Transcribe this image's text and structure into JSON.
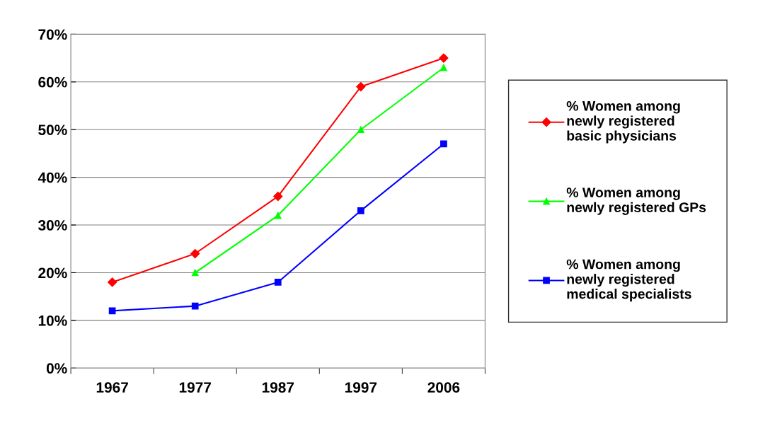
{
  "chart_data": {
    "type": "line",
    "categories": [
      "1967",
      "1977",
      "1987",
      "1997",
      "2006"
    ],
    "series": [
      {
        "name": "% Women among\nnewly registered\nbasic physicians",
        "color": "#ff0000",
        "marker": "diamond",
        "values": [
          18,
          24,
          36,
          59,
          65
        ]
      },
      {
        "name": "% Women among\nnewly registered GPs",
        "color": "#00ff00",
        "marker": "triangle",
        "values": [
          null,
          20,
          32,
          50,
          63
        ]
      },
      {
        "name": "% Women among\nnewly registered\nmedical specialists",
        "color": "#0000ff",
        "marker": "square",
        "values": [
          12,
          13,
          18,
          33,
          47
        ]
      }
    ],
    "ylim": [
      0,
      70
    ],
    "yticks": [
      {
        "value": 0,
        "label": "0%"
      },
      {
        "value": 10,
        "label": "10%"
      },
      {
        "value": 20,
        "label": "20%"
      },
      {
        "value": 30,
        "label": "30%"
      },
      {
        "value": 40,
        "label": "40%"
      },
      {
        "value": 50,
        "label": "50%"
      },
      {
        "value": 60,
        "label": "60%"
      },
      {
        "value": 70,
        "label": "70%"
      }
    ],
    "grid": "y",
    "legend": "right",
    "line_style": "solid"
  }
}
